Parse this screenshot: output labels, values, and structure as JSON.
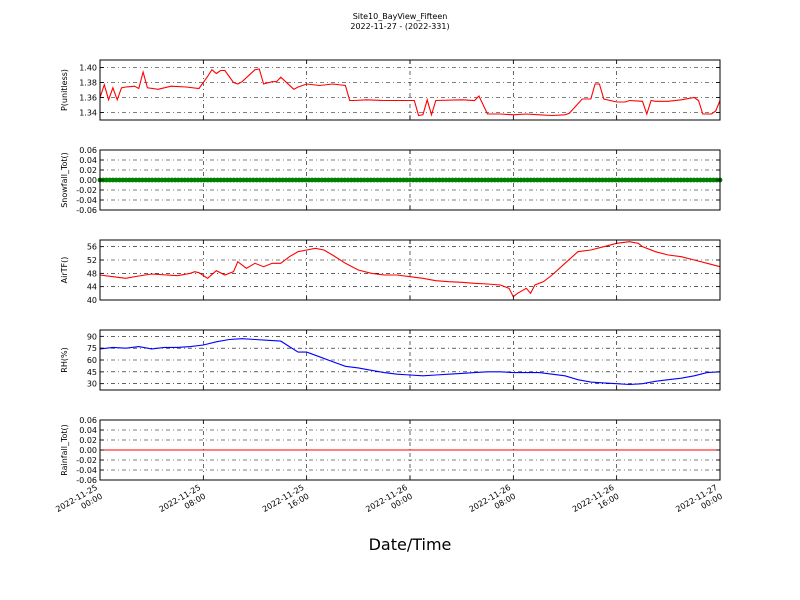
{
  "figure": {
    "title": "Site10_BayView_Fifteen",
    "subtitle": "2022-11-27 - (2022-331)",
    "xlabel": "Date/Time"
  },
  "chart_data": {
    "type": "line",
    "x_ticks": [
      {
        "l1": "2022-11-25",
        "l2": "00:00"
      },
      {
        "l1": "2022-11-25",
        "l2": "08:00"
      },
      {
        "l1": "2022-11-25",
        "l2": "16:00"
      },
      {
        "l1": "2022-11-26",
        "l2": "00:00"
      },
      {
        "l1": "2022-11-26",
        "l2": "08:00"
      },
      {
        "l1": "2022-11-26",
        "l2": "16:00"
      },
      {
        "l1": "2022-11-27",
        "l2": "00:00"
      }
    ],
    "xlim": [
      "2022-11-25 00:00",
      "2022-11-27 00:00"
    ],
    "grid": true,
    "panels": [
      {
        "ylabel": "P(unitless)",
        "ylim": [
          1.33,
          1.41
        ],
        "yticks": [
          "1.40",
          "1.38",
          "1.36",
          "1.34"
        ],
        "ytick_values": [
          1.4,
          1.38,
          1.36,
          1.34
        ],
        "color": "#ff0000",
        "marker": false,
        "series": {
          "name": "",
          "x": [
            "2022-11-25 00:00",
            "2022-11-25 00:20",
            "2022-11-25 00:40",
            "2022-11-25 01:00",
            "2022-11-25 01:20",
            "2022-11-25 01:40",
            "2022-11-25 02:00",
            "2022-11-25 02:40",
            "2022-11-25 03:00",
            "2022-11-25 03:20",
            "2022-11-25 03:40",
            "2022-11-25 04:30",
            "2022-11-25 05:30",
            "2022-11-25 06:40",
            "2022-11-25 07:40",
            "2022-11-25 08:20",
            "2022-11-25 08:40",
            "2022-11-25 09:00",
            "2022-11-25 09:20",
            "2022-11-25 09:40",
            "2022-11-25 10:20",
            "2022-11-25 10:40",
            "2022-11-25 11:00",
            "2022-11-25 12:00",
            "2022-11-25 12:20",
            "2022-11-25 12:40",
            "2022-11-25 13:20",
            "2022-11-25 13:40",
            "2022-11-25 14:00",
            "2022-11-25 15:00",
            "2022-11-25 15:20",
            "2022-11-25 16:00",
            "2022-11-25 17:00",
            "2022-11-25 18:00",
            "2022-11-25 19:00",
            "2022-11-25 19:20",
            "2022-11-25 19:40",
            "2022-11-25 20:40",
            "2022-11-25 22:00",
            "2022-11-25 23:20",
            "2022-11-26 00:20",
            "2022-11-26 00:40",
            "2022-11-26 01:00",
            "2022-11-26 01:20",
            "2022-11-26 01:40",
            "2022-11-26 02:00",
            "2022-11-26 04:00",
            "2022-11-26 05:00",
            "2022-11-26 05:20",
            "2022-11-26 06:00",
            "2022-11-26 07:00",
            "2022-11-26 08:00",
            "2022-11-26 09:00",
            "2022-11-26 10:00",
            "2022-11-26 11:00",
            "2022-11-26 12:00",
            "2022-11-26 12:20",
            "2022-11-26 13:20",
            "2022-11-26 14:00",
            "2022-11-26 14:20",
            "2022-11-26 14:40",
            "2022-11-26 15:00",
            "2022-11-26 16:00",
            "2022-11-26 16:40",
            "2022-11-26 17:00",
            "2022-11-26 18:00",
            "2022-11-26 18:20",
            "2022-11-26 18:40",
            "2022-11-26 19:00",
            "2022-11-26 20:00",
            "2022-11-26 21:00",
            "2022-11-26 22:00",
            "2022-11-26 22:20",
            "2022-11-26 22:40",
            "2022-11-26 23:20",
            "2022-11-26 23:40",
            "2022-11-27 00:00"
          ],
          "values": [
            1.36,
            1.377,
            1.357,
            1.373,
            1.357,
            1.373,
            1.374,
            1.375,
            1.372,
            1.394,
            1.373,
            1.371,
            1.375,
            1.374,
            1.372,
            1.388,
            1.397,
            1.392,
            1.396,
            1.396,
            1.38,
            1.378,
            1.381,
            1.397,
            1.398,
            1.378,
            1.381,
            1.381,
            1.387,
            1.371,
            1.374,
            1.378,
            1.376,
            1.378,
            1.376,
            1.356,
            1.356,
            1.357,
            1.356,
            1.356,
            1.356,
            1.336,
            1.337,
            1.357,
            1.337,
            1.356,
            1.357,
            1.356,
            1.362,
            1.338,
            1.338,
            1.337,
            1.338,
            1.337,
            1.336,
            1.337,
            1.339,
            1.358,
            1.358,
            1.378,
            1.378,
            1.358,
            1.354,
            1.354,
            1.356,
            1.355,
            1.338,
            1.356,
            1.355,
            1.355,
            1.357,
            1.36,
            1.356,
            1.338,
            1.338,
            1.342,
            1.356
          ]
        }
      },
      {
        "ylabel": "Snowfall_Tot()",
        "ylim": [
          -0.06,
          0.06
        ],
        "yticks": [
          "0.06",
          "0.04",
          "0.02",
          "0.00",
          "-0.02",
          "-0.04",
          "-0.06"
        ],
        "ytick_values": [
          0.06,
          0.04,
          0.02,
          0.0,
          -0.02,
          -0.04,
          -0.06
        ],
        "color": "#008000",
        "marker": true,
        "series": {
          "name": "",
          "x": [
            "2022-11-25 00:00",
            "2022-11-27 00:00"
          ],
          "values": [
            0.0,
            0.0
          ]
        }
      },
      {
        "ylabel": "AirTF()",
        "ylim": [
          40,
          58
        ],
        "yticks": [
          "56",
          "52",
          "48",
          "44",
          "40"
        ],
        "ytick_values": [
          56,
          52,
          48,
          44,
          40
        ],
        "color": "#ff0000",
        "marker": false,
        "series": {
          "name": "",
          "x": [
            "2022-11-25 00:00",
            "2022-11-25 01:00",
            "2022-11-25 02:00",
            "2022-11-25 03:00",
            "2022-11-25 04:00",
            "2022-11-25 06:00",
            "2022-11-25 07:00",
            "2022-11-25 07:20",
            "2022-11-25 07:40",
            "2022-11-25 08:20",
            "2022-11-25 09:00",
            "2022-11-25 09:40",
            "2022-11-25 10:20",
            "2022-11-25 10:40",
            "2022-11-25 11:20",
            "2022-11-25 12:00",
            "2022-11-25 12:40",
            "2022-11-25 13:20",
            "2022-11-25 14:00",
            "2022-11-25 14:40",
            "2022-11-25 15:20",
            "2022-11-25 16:00",
            "2022-11-25 16:40",
            "2022-11-25 17:20",
            "2022-11-25 18:00",
            "2022-11-25 19:00",
            "2022-11-25 20:00",
            "2022-11-25 21:00",
            "2022-11-25 22:00",
            "2022-11-25 23:00",
            "2022-11-26 00:00",
            "2022-11-26 01:00",
            "2022-11-26 02:00",
            "2022-11-26 03:00",
            "2022-11-26 04:00",
            "2022-11-26 05:00",
            "2022-11-26 06:00",
            "2022-11-26 07:00",
            "2022-11-26 07:40",
            "2022-11-26 08:00",
            "2022-11-26 08:20",
            "2022-11-26 09:00",
            "2022-11-26 09:20",
            "2022-11-26 09:40",
            "2022-11-26 10:20",
            "2022-11-26 11:00",
            "2022-11-26 12:00",
            "2022-11-26 13:00",
            "2022-11-26 14:00",
            "2022-11-26 15:00",
            "2022-11-26 16:00",
            "2022-11-26 17:00",
            "2022-11-26 17:40",
            "2022-11-26 18:00",
            "2022-11-26 19:00",
            "2022-11-26 20:00",
            "2022-11-26 21:00",
            "2022-11-26 22:00",
            "2022-11-26 23:00",
            "2022-11-27 00:00"
          ],
          "values": [
            47.5,
            47.0,
            46.5,
            47.2,
            47.8,
            47.3,
            48.0,
            48.5,
            48.2,
            46.5,
            48.8,
            47.5,
            48.5,
            51.5,
            49.5,
            51.0,
            50.0,
            51.0,
            51.0,
            53.0,
            54.5,
            55.0,
            55.5,
            55.0,
            53.5,
            51.0,
            49.0,
            48.0,
            47.5,
            47.5,
            47.0,
            46.5,
            45.8,
            45.5,
            45.3,
            45.0,
            44.8,
            44.5,
            43.5,
            41.0,
            42.0,
            43.5,
            42.0,
            44.5,
            45.5,
            47.5,
            51.0,
            54.5,
            55.0,
            56.0,
            57.0,
            57.5,
            57.0,
            56.0,
            54.5,
            53.5,
            53.0,
            52.0,
            51.0,
            50.0
          ]
        }
      },
      {
        "ylabel": "RH(%)",
        "ylim": [
          22,
          98
        ],
        "yticks": [
          "90",
          "75",
          "60",
          "45",
          "30"
        ],
        "ytick_values": [
          90,
          75,
          60,
          45,
          30
        ],
        "color": "#0000ff",
        "marker": false,
        "series": {
          "name": "",
          "x": [
            "2022-11-25 00:00",
            "2022-11-25 01:00",
            "2022-11-25 02:00",
            "2022-11-25 03:00",
            "2022-11-25 04:00",
            "2022-11-25 05:00",
            "2022-11-25 06:00",
            "2022-11-25 07:00",
            "2022-11-25 08:00",
            "2022-11-25 09:00",
            "2022-11-25 10:00",
            "2022-11-25 11:00",
            "2022-11-25 12:00",
            "2022-11-25 13:00",
            "2022-11-25 14:00",
            "2022-11-25 14:40",
            "2022-11-25 15:20",
            "2022-11-25 16:00",
            "2022-11-25 17:00",
            "2022-11-25 18:00",
            "2022-11-25 19:00",
            "2022-11-25 20:00",
            "2022-11-25 21:00",
            "2022-11-25 22:00",
            "2022-11-25 23:00",
            "2022-11-26 00:00",
            "2022-11-26 01:00",
            "2022-11-26 02:00",
            "2022-11-26 03:00",
            "2022-11-26 04:00",
            "2022-11-26 05:00",
            "2022-11-26 06:00",
            "2022-11-26 07:00",
            "2022-11-26 08:00",
            "2022-11-26 09:00",
            "2022-11-26 10:00",
            "2022-11-26 11:00",
            "2022-11-26 12:00",
            "2022-11-26 13:00",
            "2022-11-26 14:00",
            "2022-11-26 15:00",
            "2022-11-26 16:00",
            "2022-11-26 17:00",
            "2022-11-26 18:00",
            "2022-11-26 19:00",
            "2022-11-26 20:00",
            "2022-11-26 21:00",
            "2022-11-26 22:00",
            "2022-11-26 23:00",
            "2022-11-27 00:00"
          ],
          "values": [
            74,
            76,
            75,
            77,
            74,
            76,
            76,
            77,
            79,
            83,
            86,
            87,
            86,
            85,
            84,
            77,
            70,
            70,
            64,
            58,
            52,
            50,
            47,
            44,
            42,
            41,
            40,
            41,
            42,
            43,
            44,
            45,
            45,
            44,
            44,
            44,
            42,
            40,
            35,
            32,
            31,
            30,
            29,
            30,
            33,
            35,
            37,
            40,
            44,
            45
          ]
        }
      },
      {
        "ylabel": "Rainfall_Tot()",
        "ylim": [
          -0.06,
          0.06
        ],
        "yticks": [
          "0.06",
          "0.04",
          "0.02",
          "0.00",
          "-0.02",
          "-0.04",
          "-0.06"
        ],
        "ytick_values": [
          0.06,
          0.04,
          0.02,
          0.0,
          -0.02,
          -0.04,
          -0.06
        ],
        "color": "#ff0000",
        "marker": false,
        "series": {
          "name": "",
          "x": [
            "2022-11-25 00:00",
            "2022-11-27 00:00"
          ],
          "values": [
            0.0,
            0.0
          ]
        }
      }
    ]
  }
}
